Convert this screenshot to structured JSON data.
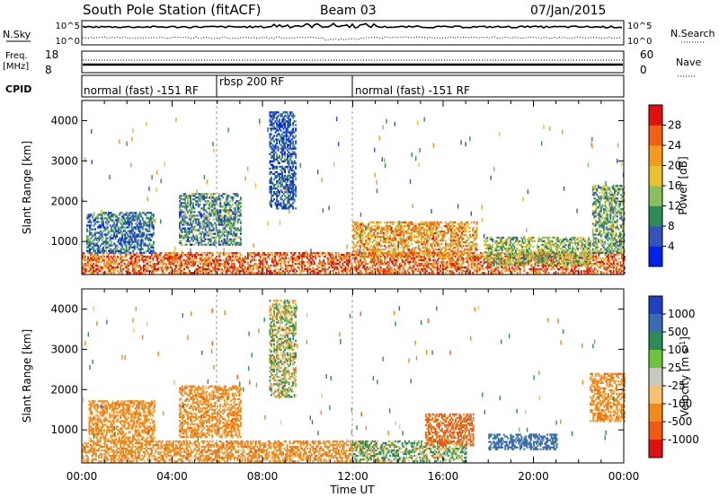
{
  "header": {
    "title": "South Pole Station (fitACF)",
    "beam": "Beam 03",
    "date": "07/Jan/2015"
  },
  "top_panel": {
    "nsky_label": "N.Sky",
    "nsky_ticks": [
      "10^5",
      "10^0"
    ],
    "nsearch_label": "N.Search",
    "nsearch_ticks": [
      "10^5",
      "10^0"
    ],
    "freq_label": "Freq.",
    "freq_unit": "[MHz]",
    "freq_ticks": [
      "18",
      "8"
    ],
    "nave_label": "Nave",
    "nave_ticks": [
      "60",
      "0"
    ],
    "cpid_label": "CPID",
    "cpid_segments": [
      {
        "label": "normal (fast) -151 RF",
        "start": 0,
        "end": 6
      },
      {
        "label": "rbsp 200 RF",
        "start": 6,
        "end": 12
      },
      {
        "label": "normal (fast) -151 RF",
        "start": 12,
        "end": 24
      }
    ]
  },
  "chart_data": [
    {
      "type": "heatmap",
      "title": "",
      "quantity": "Power",
      "xlabel": "",
      "ylabel": "Slant Range [km]",
      "xlim": [
        0,
        24
      ],
      "ylim": [
        180,
        4500
      ],
      "yticks": [
        1000,
        2000,
        3000,
        4000
      ],
      "colorbar": {
        "label": "Power [dB]",
        "range": [
          0,
          32
        ],
        "ticks": [
          "4",
          "8",
          "12",
          "16",
          "20",
          "24",
          "28"
        ],
        "colors": [
          "#0022ee",
          "#3355bb",
          "#2e8b57",
          "#88c060",
          "#e8c22a",
          "#f39a20",
          "#f06010",
          "#e01010"
        ]
      },
      "features": [
        {
          "t0": 0.0,
          "t1": 24.0,
          "r0": 200,
          "r1": 700,
          "value": 26
        },
        {
          "t0": 0.2,
          "t1": 3.2,
          "r0": 700,
          "r1": 1700,
          "value": 8
        },
        {
          "t0": 4.3,
          "t1": 7.0,
          "r0": 900,
          "r1": 2200,
          "value": 10
        },
        {
          "t0": 8.3,
          "t1": 9.5,
          "r0": 1800,
          "r1": 4200,
          "value": 6
        },
        {
          "t0": 12.0,
          "t1": 17.5,
          "r0": 600,
          "r1": 1500,
          "value": 22
        },
        {
          "t0": 17.8,
          "t1": 22.5,
          "r0": 400,
          "r1": 1100,
          "value": 14
        },
        {
          "t0": 22.6,
          "t1": 24.0,
          "r0": 700,
          "r1": 2400,
          "value": 12
        }
      ]
    },
    {
      "type": "heatmap",
      "title": "",
      "quantity": "Velocity",
      "xlabel": "Time UT",
      "ylabel": "Slant Range [km]",
      "xlim": [
        0,
        24
      ],
      "ylim": [
        180,
        4500
      ],
      "xticks": [
        "00:00",
        "04:00",
        "08:00",
        "12:00",
        "16:00",
        "20:00",
        "00:00"
      ],
      "yticks": [
        1000,
        2000,
        3000,
        4000
      ],
      "colorbar": {
        "label": "Velocity [m s^-1]",
        "ticks": [
          "1000",
          "500",
          "100",
          "25",
          "-25",
          "-100",
          "-500",
          "-1000"
        ],
        "colors": [
          "#2040c0",
          "#3a6bb5",
          "#2e8b57",
          "#6cc43c",
          "#c8c8c0",
          "#f6c070",
          "#f08a18",
          "#f05a10",
          "#e01010"
        ]
      },
      "features": [
        {
          "t0": 0.0,
          "t1": 12.0,
          "r0": 200,
          "r1": 700,
          "value": -300
        },
        {
          "t0": 12.0,
          "t1": 17.0,
          "r0": 200,
          "r1": 700,
          "value": 60
        },
        {
          "t0": 0.3,
          "t1": 3.2,
          "r0": 700,
          "r1": 1700,
          "value": -300
        },
        {
          "t0": 4.3,
          "t1": 7.0,
          "r0": 800,
          "r1": 2100,
          "value": -300
        },
        {
          "t0": 8.3,
          "t1": 9.5,
          "r0": 1800,
          "r1": 4200,
          "value": 0
        },
        {
          "t0": 15.2,
          "t1": 17.3,
          "r0": 600,
          "r1": 1400,
          "value": -600
        },
        {
          "t0": 18.0,
          "t1": 21.0,
          "r0": 500,
          "r1": 900,
          "value": 700
        },
        {
          "t0": 22.5,
          "t1": 24.0,
          "r0": 1200,
          "r1": 2400,
          "value": -300
        }
      ]
    }
  ]
}
